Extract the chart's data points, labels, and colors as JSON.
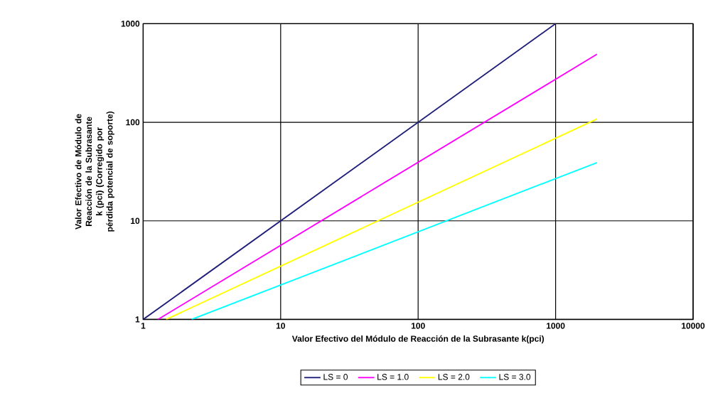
{
  "chart_data": {
    "type": "line",
    "log": "xy",
    "xlabel": "Valor Efectivo del Módulo de Reacción de la Subrasante k(pci)",
    "ylabel": "Valor Efectivo de Módulo de Reacción de la Subrasante k (pci) (Corregido por pérdida potencial de soporte)",
    "xlim": [
      1,
      10000
    ],
    "ylim": [
      1,
      1000
    ],
    "xticks": [
      1,
      10,
      100,
      1000,
      10000
    ],
    "yticks": [
      1,
      10,
      100,
      1000
    ],
    "grid": true,
    "legend": "bottom",
    "series": [
      {
        "name": "LS = 0",
        "color": "#1f1f7a",
        "x": [
          1,
          1000
        ],
        "values": [
          1,
          1000
        ]
      },
      {
        "name": "LS = 1.0",
        "color": "#ff00ff",
        "x": [
          1.28,
          2000
        ],
        "values": [
          1,
          490
        ]
      },
      {
        "name": "LS = 2.0",
        "color": "#ffff00",
        "x": [
          1.47,
          2000
        ],
        "values": [
          1,
          108
        ]
      },
      {
        "name": "LS = 3.0",
        "color": "#00ffff",
        "x": [
          2.25,
          2000
        ],
        "values": [
          1,
          39
        ]
      }
    ]
  }
}
